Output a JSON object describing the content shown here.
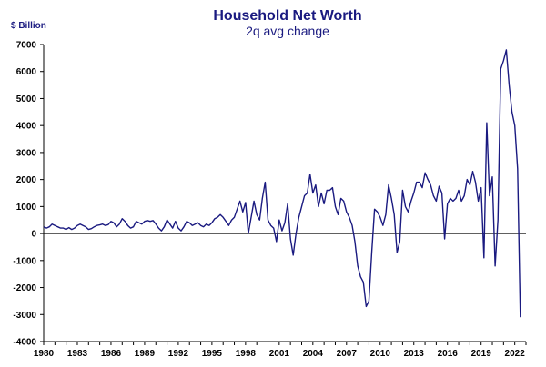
{
  "chart_data": {
    "type": "line",
    "title": "Household Net Worth",
    "subtitle": "2q avg change",
    "ylabel": "$ Billion",
    "xlabel": "",
    "ylim": [
      -4000,
      7000
    ],
    "xlim": [
      1980,
      2023
    ],
    "yticks": [
      "7000",
      "6000",
      "5000",
      "4000",
      "3000",
      "2000",
      "1000",
      "0",
      "-1000",
      "-2000",
      "-3000",
      "-4000"
    ],
    "xticks": [
      "1980",
      "1983",
      "1986",
      "1989",
      "1992",
      "1995",
      "1998",
      "2001",
      "2004",
      "2007",
      "2010",
      "2013",
      "2016",
      "2019",
      "2022"
    ],
    "grid": false,
    "series": [
      {
        "color": "#1a1a80",
        "x": [
          1980.0,
          1980.25,
          1980.5,
          1980.75,
          1981.0,
          1981.25,
          1981.5,
          1981.75,
          1982.0,
          1982.25,
          1982.5,
          1982.75,
          1983.0,
          1983.25,
          1983.5,
          1983.75,
          1984.0,
          1984.25,
          1984.5,
          1984.75,
          1985.0,
          1985.25,
          1985.5,
          1985.75,
          1986.0,
          1986.25,
          1986.5,
          1986.75,
          1987.0,
          1987.25,
          1987.5,
          1987.75,
          1988.0,
          1988.25,
          1988.5,
          1988.75,
          1989.0,
          1989.25,
          1989.5,
          1989.75,
          1990.0,
          1990.25,
          1990.5,
          1990.75,
          1991.0,
          1991.25,
          1991.5,
          1991.75,
          1992.0,
          1992.25,
          1992.5,
          1992.75,
          1993.0,
          1993.25,
          1993.5,
          1993.75,
          1994.0,
          1994.25,
          1994.5,
          1994.75,
          1995.0,
          1995.25,
          1995.5,
          1995.75,
          1996.0,
          1996.25,
          1996.5,
          1996.75,
          1997.0,
          1997.25,
          1997.5,
          1997.75,
          1998.0,
          1998.25,
          1998.5,
          1998.75,
          1999.0,
          1999.25,
          1999.5,
          1999.75,
          2000.0,
          2000.25,
          2000.5,
          2000.75,
          2001.0,
          2001.25,
          2001.5,
          2001.75,
          2002.0,
          2002.25,
          2002.5,
          2002.75,
          2003.0,
          2003.25,
          2003.5,
          2003.75,
          2004.0,
          2004.25,
          2004.5,
          2004.75,
          2005.0,
          2005.25,
          2005.5,
          2005.75,
          2006.0,
          2006.25,
          2006.5,
          2006.75,
          2007.0,
          2007.25,
          2007.5,
          2007.75,
          2008.0,
          2008.25,
          2008.5,
          2008.75,
          2009.0,
          2009.25,
          2009.5,
          2009.75,
          2010.0,
          2010.25,
          2010.5,
          2010.75,
          2011.0,
          2011.25,
          2011.5,
          2011.75,
          2012.0,
          2012.25,
          2012.5,
          2012.75,
          2013.0,
          2013.25,
          2013.5,
          2013.75,
          2014.0,
          2014.25,
          2014.5,
          2014.75,
          2015.0,
          2015.25,
          2015.5,
          2015.75,
          2016.0,
          2016.25,
          2016.5,
          2016.75,
          2017.0,
          2017.25,
          2017.5,
          2017.75,
          2018.0,
          2018.25,
          2018.5,
          2018.75,
          2019.0,
          2019.25,
          2019.5,
          2019.75,
          2020.0,
          2020.25,
          2020.5,
          2020.75,
          2021.0,
          2021.25,
          2021.5,
          2021.75,
          2022.0,
          2022.25,
          2022.5
        ],
        "values": [
          250,
          200,
          250,
          350,
          300,
          250,
          200,
          200,
          150,
          220,
          150,
          200,
          300,
          350,
          300,
          250,
          150,
          180,
          250,
          300,
          320,
          350,
          300,
          330,
          450,
          400,
          250,
          350,
          550,
          450,
          300,
          200,
          250,
          450,
          400,
          350,
          450,
          480,
          450,
          480,
          350,
          200,
          100,
          250,
          500,
          350,
          200,
          450,
          200,
          100,
          250,
          450,
          400,
          300,
          350,
          400,
          300,
          250,
          350,
          300,
          400,
          550,
          600,
          700,
          600,
          450,
          300,
          500,
          600,
          900,
          1200,
          800,
          1150,
          0,
          600,
          1200,
          700,
          500,
          1300,
          1900,
          500,
          300,
          200,
          -300,
          500,
          100,
          400,
          1100,
          -200,
          -800,
          0,
          600,
          1000,
          1400,
          1500,
          2200,
          1500,
          1800,
          1000,
          1500,
          1100,
          1600,
          1600,
          1700,
          1000,
          700,
          1300,
          1200,
          800,
          600,
          300,
          -300,
          -1200,
          -1600,
          -1800,
          -2700,
          -2500,
          -700,
          900,
          800,
          600,
          300,
          700,
          1800,
          1300,
          700,
          -700,
          -300,
          1600,
          1000,
          800,
          1200,
          1500,
          1900,
          1900,
          1700,
          2250,
          2000,
          1800,
          1400,
          1200,
          1750,
          1500,
          -200,
          1100,
          1300,
          1200,
          1300,
          1600,
          1200,
          1400,
          2000,
          1800,
          2300,
          1900,
          1200,
          1700,
          -900,
          4100,
          1400,
          2100,
          -1200,
          500,
          6100,
          6400,
          6800,
          5500,
          4500,
          4000,
          2400,
          -3100
        ]
      }
    ]
  }
}
